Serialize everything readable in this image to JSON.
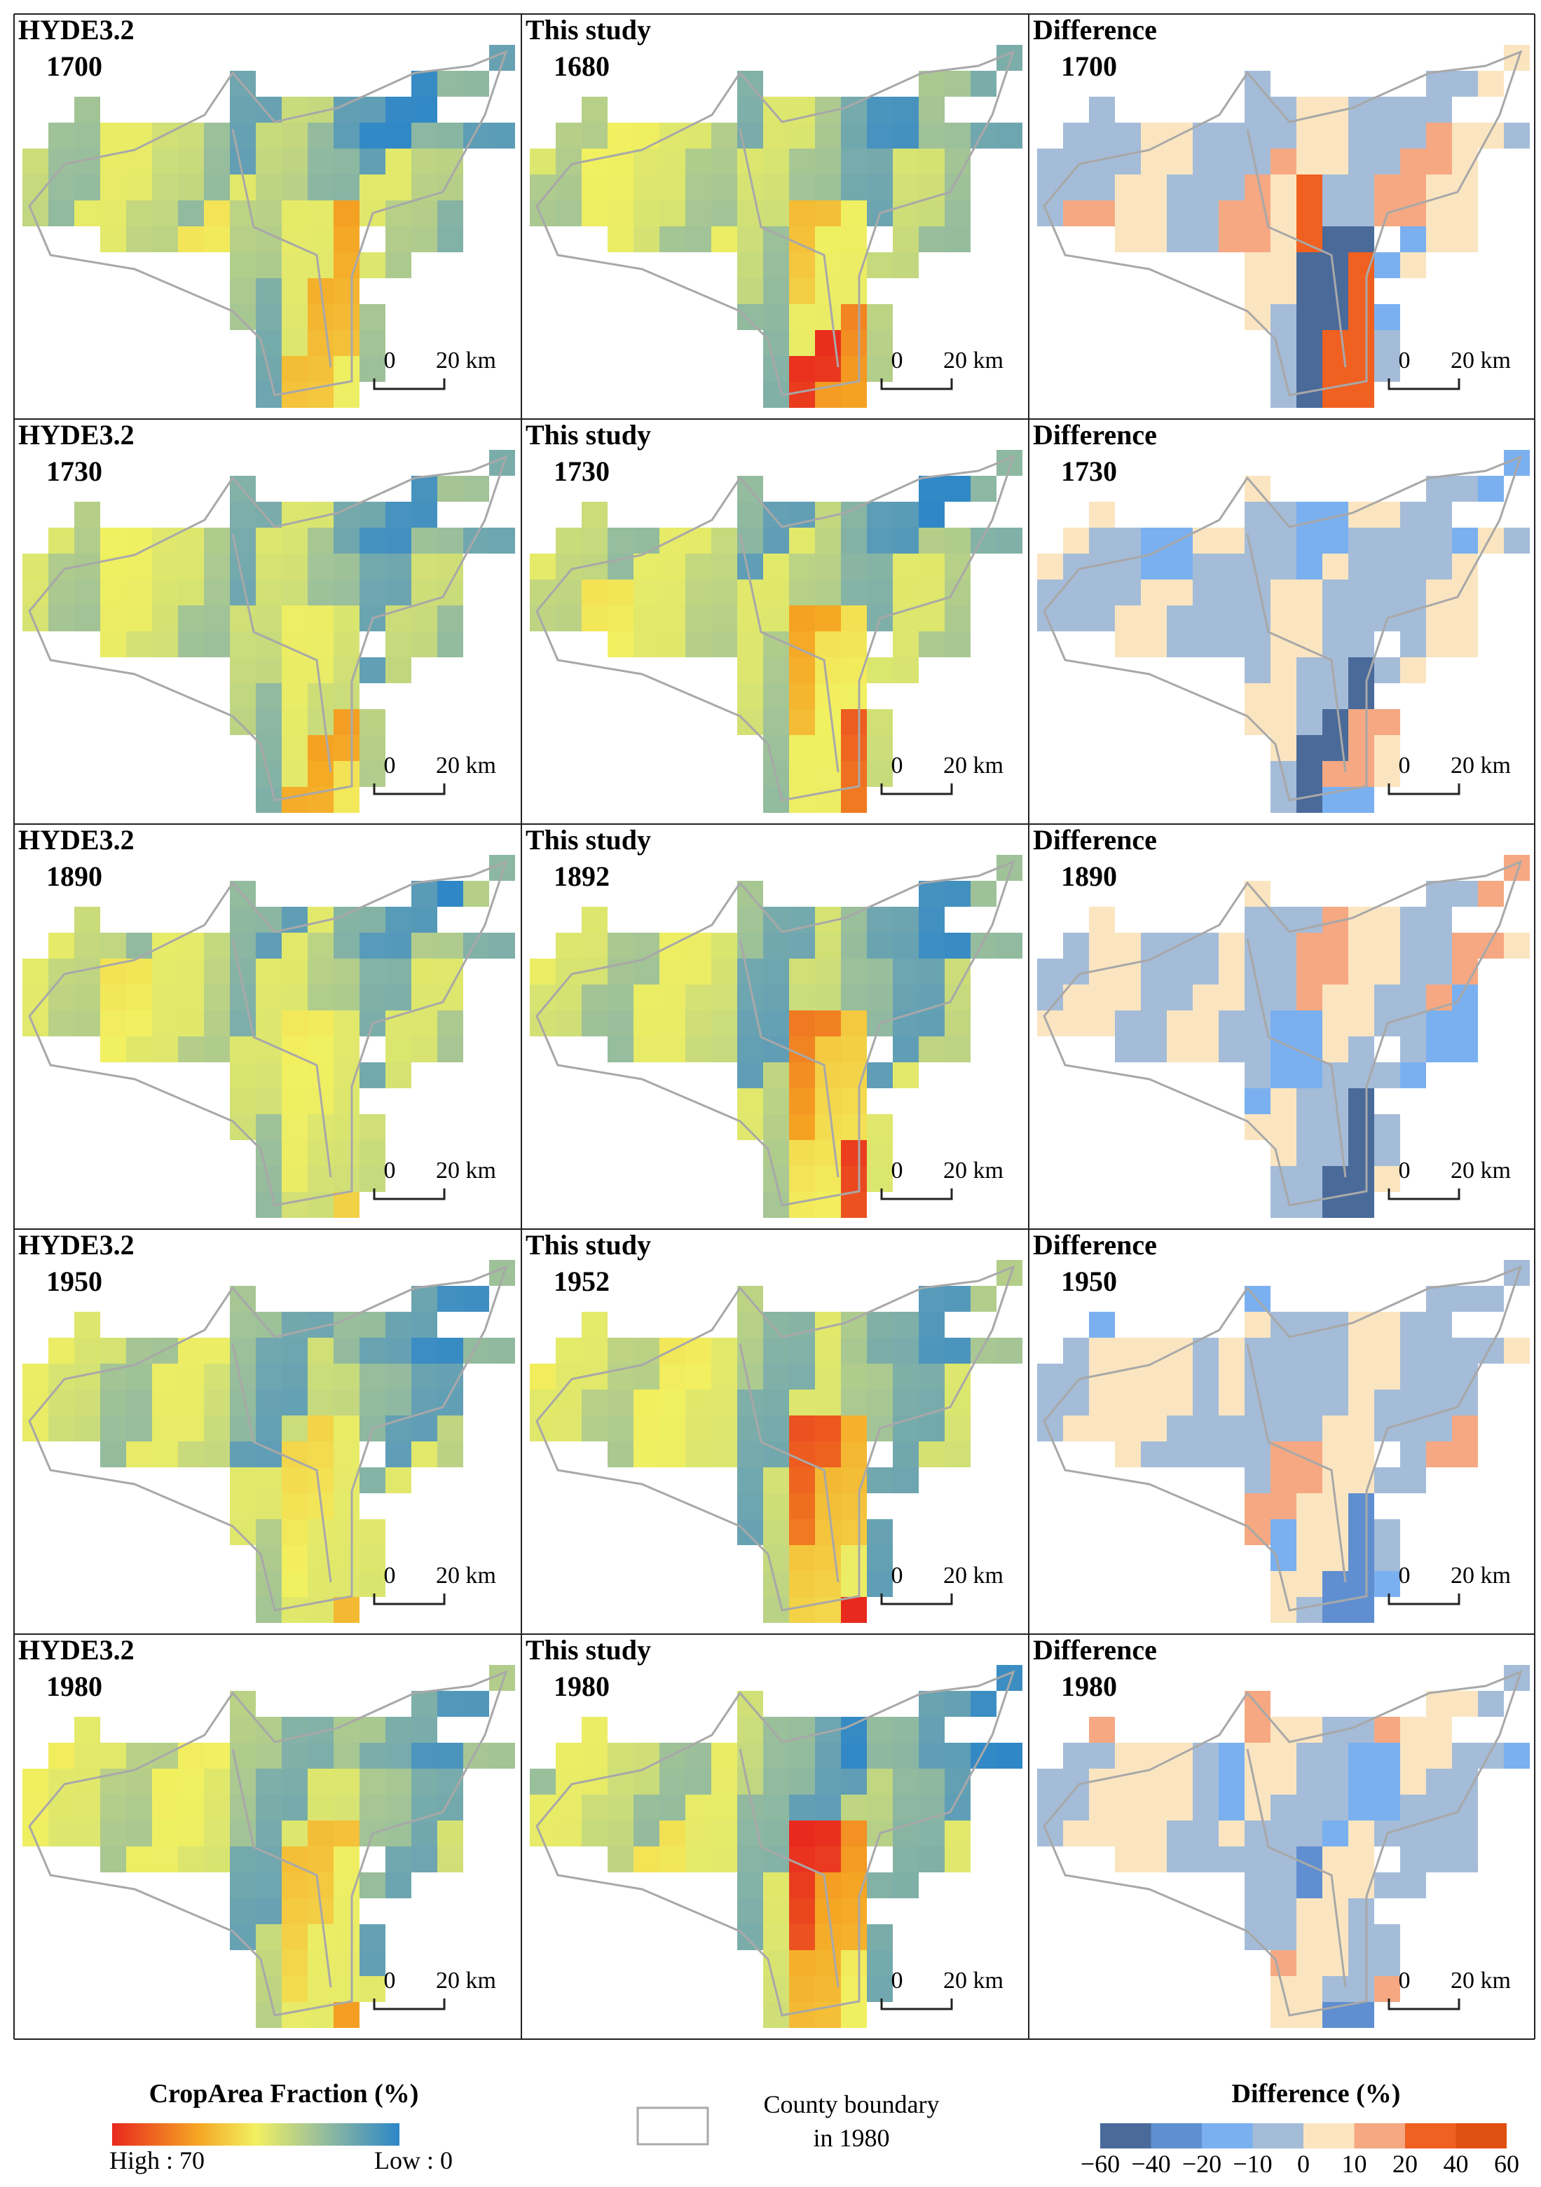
{
  "panels": [
    {
      "title": "HYDE3.2",
      "year": "1700",
      "scale_start": "0",
      "scale_end": "20 km"
    },
    {
      "title": "This study",
      "year": "1680",
      "scale_start": "0",
      "scale_end": "20 km"
    },
    {
      "title": "Difference",
      "year": "1700",
      "scale_start": "0",
      "scale_end": "20 km"
    },
    {
      "title": "HYDE3.2",
      "year": "1730",
      "scale_start": "0",
      "scale_end": "20 km"
    },
    {
      "title": "This study",
      "year": "1730",
      "scale_start": "0",
      "scale_end": "20 km"
    },
    {
      "title": "Difference",
      "year": "1730",
      "scale_start": "0",
      "scale_end": "20 km"
    },
    {
      "title": "HYDE3.2",
      "year": "1890",
      "scale_start": "0",
      "scale_end": "20 km"
    },
    {
      "title": "This study",
      "year": "1892",
      "scale_start": "0",
      "scale_end": "20 km"
    },
    {
      "title": "Difference",
      "year": "1890",
      "scale_start": "0",
      "scale_end": "20 km"
    },
    {
      "title": "HYDE3.2",
      "year": "1950",
      "scale_start": "0",
      "scale_end": "20 km"
    },
    {
      "title": "This study",
      "year": "1952",
      "scale_start": "0",
      "scale_end": "20 km"
    },
    {
      "title": "Difference",
      "year": "1950",
      "scale_start": "0",
      "scale_end": "20 km"
    },
    {
      "title": "HYDE3.2",
      "year": "1980",
      "scale_start": "0",
      "scale_end": "20 km"
    },
    {
      "title": "This study",
      "year": "1980",
      "scale_start": "0",
      "scale_end": "20 km"
    },
    {
      "title": "Difference",
      "year": "1980",
      "scale_start": "0",
      "scale_end": "20 km"
    }
  ],
  "legend": {
    "crop": {
      "title": "CropArea Fraction (%)",
      "high": "High : 70",
      "low": "Low : 0"
    },
    "boundary": {
      "line1": "County boundary",
      "line2": "in 1980"
    },
    "difference": {
      "title": "Difference (%)",
      "ticks": [
        "−60",
        "−40",
        "−20",
        "−10",
        "0",
        "10",
        "20",
        "40",
        "60"
      ]
    }
  }
}
